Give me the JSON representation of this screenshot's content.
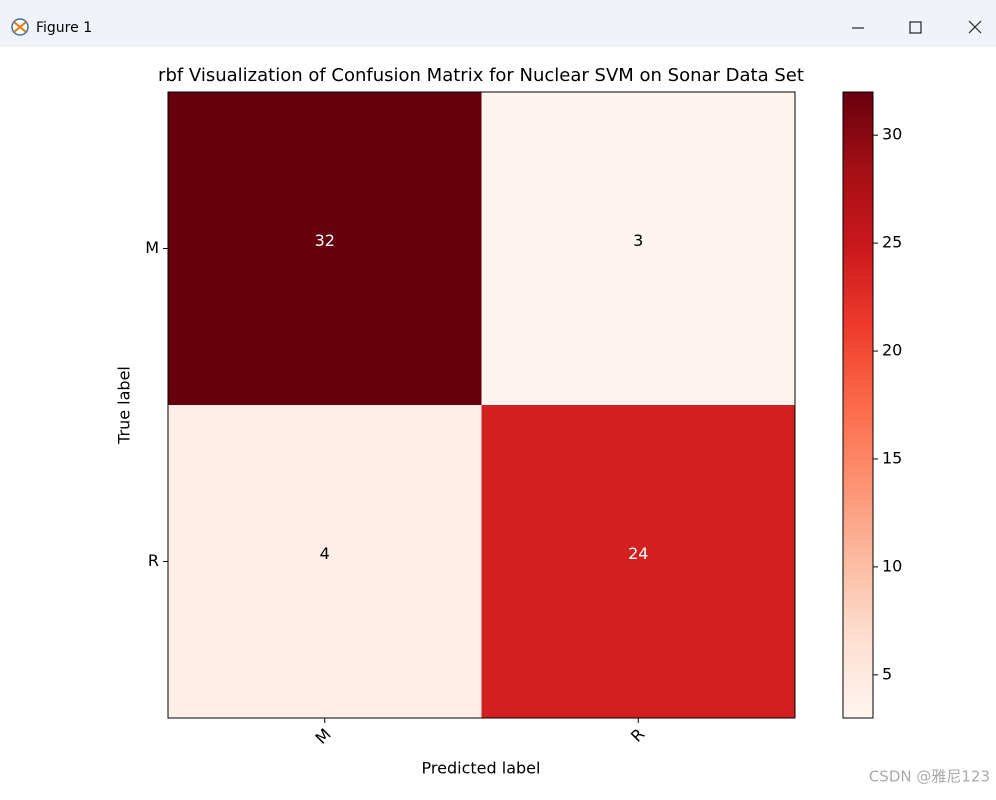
{
  "window": {
    "title": "Figure 1"
  },
  "chart_data": {
    "type": "heatmap",
    "title": "rbf Visualization of Confusion Matrix for Nuclear SVM on Sonar Data Set",
    "xlabel": "Predicted label",
    "ylabel": "True label",
    "x_categories": [
      "M",
      "R"
    ],
    "y_categories": [
      "M",
      "R"
    ],
    "values": [
      [
        32,
        3
      ],
      [
        4,
        24
      ]
    ],
    "colormap": [
      "#fff5f0",
      "#fee0d2",
      "#fcbba1",
      "#fc9272",
      "#fb6a4a",
      "#ef3b2c",
      "#cb181d",
      "#a50f15",
      "#67000d"
    ],
    "clim": [
      3,
      32
    ],
    "cticks": [
      5,
      10,
      15,
      20,
      25,
      30
    ]
  },
  "watermark": "CSDN @雅尼123"
}
